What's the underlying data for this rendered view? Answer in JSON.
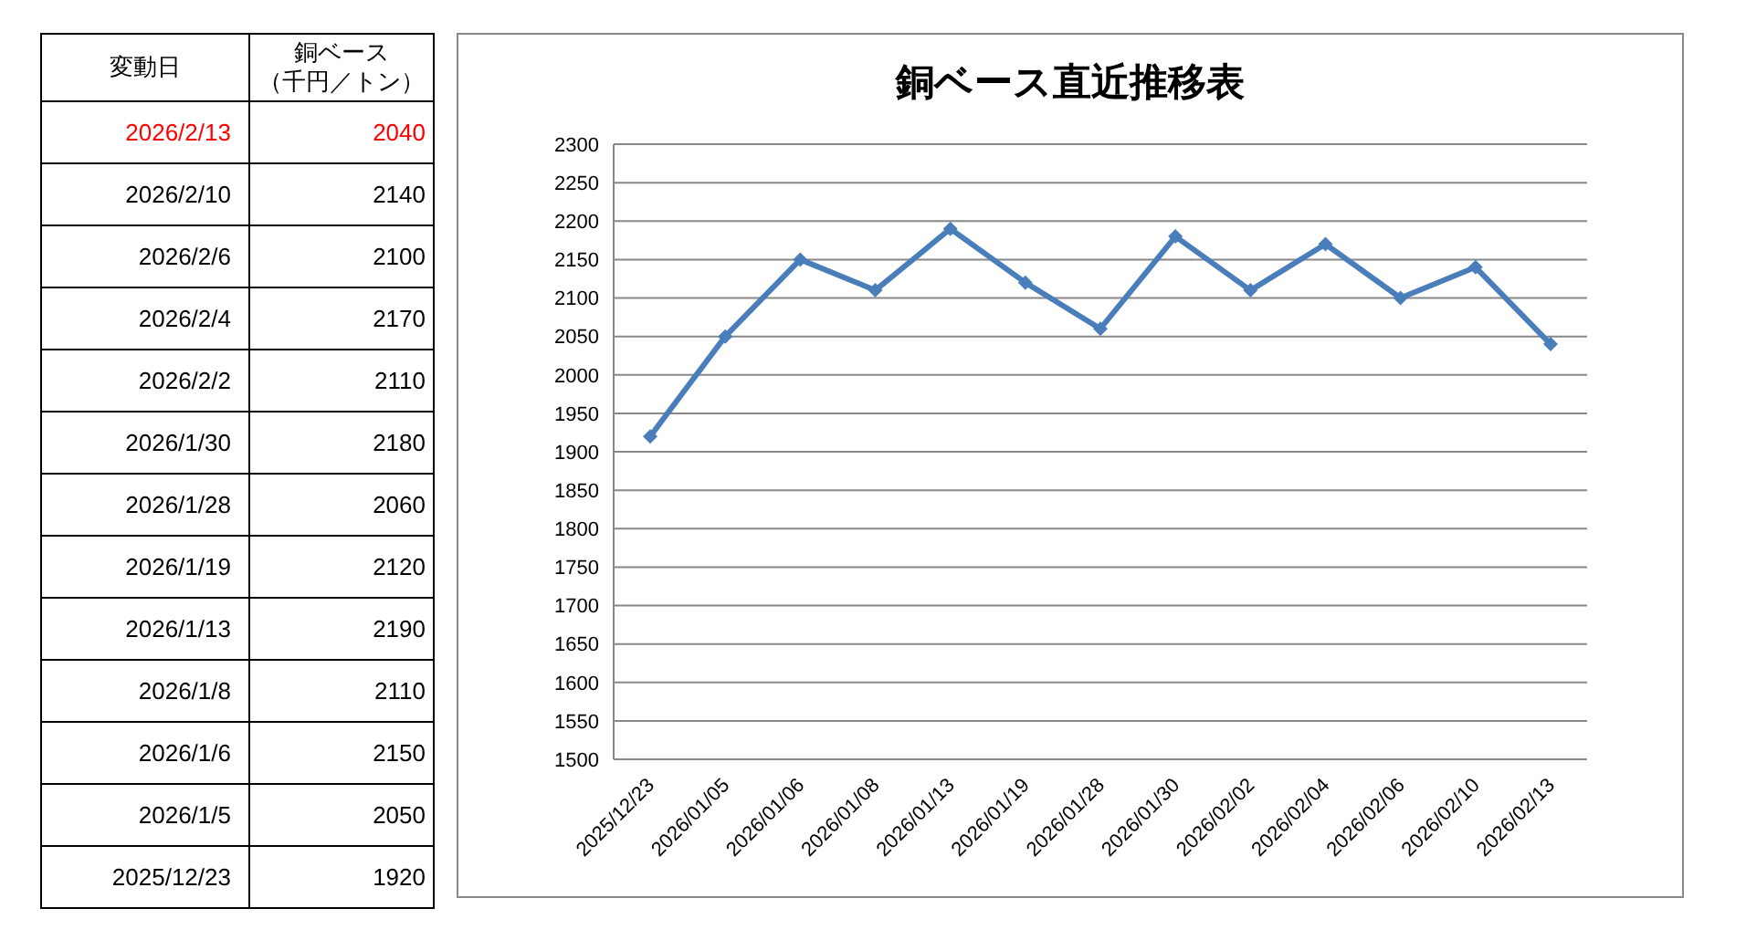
{
  "chart_data": [
    {
      "type": "other",
      "xlabel": "変動日",
      "ylabel": "銅ベース",
      "annotations": [
        "（千円／トン）"
      ],
      "data_labels": true,
      "categories": [
        "2026/2/13",
        "2026/2/10",
        "2026/2/6",
        "2026/2/4",
        "2026/2/2",
        "2026/1/30",
        "2026/1/28",
        "2026/1/19",
        "2026/1/13",
        "2026/1/8",
        "2026/1/6",
        "2026/1/5",
        "2025/12/23"
      ],
      "values": [
        2040,
        2140,
        2100,
        2170,
        2110,
        2180,
        2060,
        2120,
        2190,
        2110,
        2150,
        2050,
        1920
      ],
      "colors": [
        "#ff0000",
        "#000000",
        "#000000",
        "#000000",
        "#000000",
        "#000000",
        "#000000",
        "#000000",
        "#000000",
        "#000000",
        "#000000",
        "#000000",
        "#000000"
      ]
    },
    {
      "type": "line",
      "title": "銅ベース直近推移表",
      "categories": [
        "2025/12/23",
        "2026/01/05",
        "2026/01/06",
        "2026/01/08",
        "2026/01/13",
        "2026/01/19",
        "2026/01/28",
        "2026/01/30",
        "2026/02/02",
        "2026/02/04",
        "2026/02/06",
        "2026/02/10",
        "2026/02/13"
      ],
      "series": [
        {
          "color": "#4a7ebb",
          "values": [
            1920,
            2050,
            2150,
            2110,
            2190,
            2120,
            2060,
            2180,
            2110,
            2170,
            2100,
            2140,
            2040
          ]
        }
      ],
      "ylim": [
        1500,
        2300
      ],
      "yticks": [
        1500,
        1550,
        1600,
        1650,
        1700,
        1750,
        1800,
        1850,
        1900,
        1950,
        2000,
        2050,
        2100,
        2150,
        2200,
        2250,
        2300
      ],
      "grid": "y",
      "marker": "diamond",
      "line_style": "solid"
    }
  ]
}
